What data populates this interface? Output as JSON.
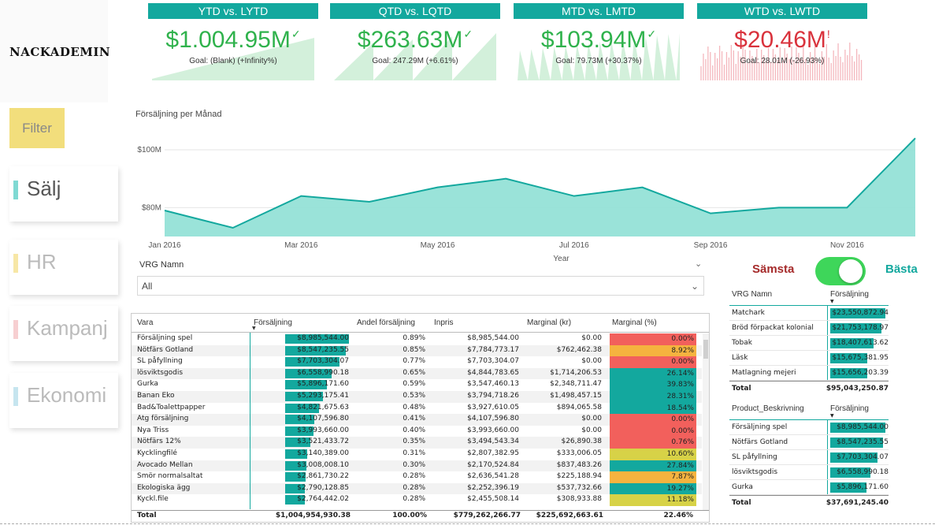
{
  "logo": "NACKADEMIN",
  "kpis": [
    {
      "title": "YTD vs. LYTD",
      "value": "$1.004.95M",
      "mark": "✓",
      "goal": "Goal: (Blank) (+Infinity%)",
      "status": "good"
    },
    {
      "title": "QTD vs. LQTD",
      "value": "$263.63M",
      "mark": "✓",
      "goal": "Goal: 247.29M (+6.61%)",
      "status": "good"
    },
    {
      "title": "MTD vs. LMTD",
      "value": "$103.94M",
      "mark": "✓",
      "goal": "Goal: 79.73M (+30.37%)",
      "status": "good"
    },
    {
      "title": "WTD vs. LWTD",
      "value": "$20.46M",
      "mark": "!",
      "goal": "Goal: 28.01M (-26.93%)",
      "status": "bad"
    }
  ],
  "colors": {
    "accent": "#13a89e",
    "good": "#2fb24c",
    "bad": "#d9323c",
    "area": "#8fe0d5",
    "toggle": "#3ed65a",
    "filter": "#f2de7c"
  },
  "nav": {
    "filter": "Filter",
    "items": [
      {
        "label": "Sälj",
        "bar_color": "#7fd9d3",
        "text_color": "#555555"
      },
      {
        "label": "HR",
        "bar_color": "#f7e7a6",
        "text_color": "#bbbbbb"
      },
      {
        "label": "Kampanj",
        "bar_color": "#f7cfd1",
        "text_color": "#bbbbbb"
      },
      {
        "label": "Ekonomi",
        "bar_color": "#c6e5ef",
        "text_color": "#bbbbbb"
      }
    ]
  },
  "chart_data": {
    "type": "area",
    "title": "Försäljning per Månad",
    "xlabel": "Year",
    "ylabel": "",
    "x": [
      "Jan 2016",
      "Feb 2016",
      "Mar 2016",
      "Apr 2016",
      "May 2016",
      "Jun 2016",
      "Jul 2016",
      "Aug 2016",
      "Sep 2016",
      "Oct 2016",
      "Nov 2016",
      "Dec 2016"
    ],
    "x_tick_labels": [
      "Jan 2016",
      "Mar 2016",
      "May 2016",
      "Jul 2016",
      "Sep 2016",
      "Nov 2016"
    ],
    "y_tick_labels": [
      "$80M",
      "$100M"
    ],
    "y_ticks": [
      80,
      100
    ],
    "values": [
      79,
      73,
      84,
      82,
      87,
      90,
      84,
      87,
      78,
      80,
      80,
      104
    ],
    "ylim": [
      70,
      106
    ],
    "grid": true
  },
  "slicer": {
    "label": "VRG Namn",
    "value": "All"
  },
  "main_table": {
    "headers": [
      "Vara",
      "Försäljning",
      "Andel försäljning",
      "Inpris",
      "Marginal (kr)",
      "Marginal (%)"
    ],
    "rows": [
      {
        "vara": "Försäljning spel",
        "forsaljning": "$8,985,544.00",
        "sales": 8985544,
        "andel": "0.89%",
        "inpris": "$8,985,544.00",
        "marginal_kr": "$0.00",
        "marginal_pct": "0.00%",
        "pct": 0.0
      },
      {
        "vara": "Nötfärs Gotland",
        "forsaljning": "$8,547,235.55",
        "sales": 8547235.55,
        "andel": "0.85%",
        "inpris": "$7,784,773.17",
        "marginal_kr": "$762,462.38",
        "marginal_pct": "8.92%",
        "pct": 8.92
      },
      {
        "vara": "SL påfyllning",
        "forsaljning": "$7,703,304.07",
        "sales": 7703304.07,
        "andel": "0.77%",
        "inpris": "$7,703,304.07",
        "marginal_kr": "$0.00",
        "marginal_pct": "0.00%",
        "pct": 0.0
      },
      {
        "vara": "lösviktsgodis",
        "forsaljning": "$6,558,990.18",
        "sales": 6558990.18,
        "andel": "0.65%",
        "inpris": "$4,844,783.65",
        "marginal_kr": "$1,714,206.53",
        "marginal_pct": "26.14%",
        "pct": 26.14
      },
      {
        "vara": "Gurka",
        "forsaljning": "$5,896,171.60",
        "sales": 5896171.6,
        "andel": "0.59%",
        "inpris": "$3,547,460.13",
        "marginal_kr": "$2,348,711.47",
        "marginal_pct": "39.83%",
        "pct": 39.83
      },
      {
        "vara": "Banan Eko",
        "forsaljning": "$5,293,175.41",
        "sales": 5293175.41,
        "andel": "0.53%",
        "inpris": "$3,794,718.26",
        "marginal_kr": "$1,498,457.15",
        "marginal_pct": "28.31%",
        "pct": 28.31
      },
      {
        "vara": "Bad&Toalettpapper",
        "forsaljning": "$4,821,675.63",
        "sales": 4821675.63,
        "andel": "0.48%",
        "inpris": "$3,927,610.05",
        "marginal_kr": "$894,065.58",
        "marginal_pct": "18.54%",
        "pct": 18.54
      },
      {
        "vara": "Atg försäljning",
        "forsaljning": "$4,107,596.80",
        "sales": 4107596.8,
        "andel": "0.41%",
        "inpris": "$4,107,596.80",
        "marginal_kr": "$0.00",
        "marginal_pct": "0.00%",
        "pct": 0.0
      },
      {
        "vara": "Nya Triss",
        "forsaljning": "$3,993,660.00",
        "sales": 3993660,
        "andel": "0.40%",
        "inpris": "$3,993,660.00",
        "marginal_kr": "$0.00",
        "marginal_pct": "0.00%",
        "pct": 0.0
      },
      {
        "vara": "Nötfärs 12%",
        "forsaljning": "$3,521,433.72",
        "sales": 3521433.72,
        "andel": "0.35%",
        "inpris": "$3,494,543.34",
        "marginal_kr": "$26,890.38",
        "marginal_pct": "0.76%",
        "pct": 0.76
      },
      {
        "vara": "Kycklingfilé",
        "forsaljning": "$3,140,389.00",
        "sales": 3140389,
        "andel": "0.31%",
        "inpris": "$2,807,382.95",
        "marginal_kr": "$333,006.05",
        "marginal_pct": "10.60%",
        "pct": 10.6
      },
      {
        "vara": "Avocado Mellan",
        "forsaljning": "$3,008,008.10",
        "sales": 3008008.1,
        "andel": "0.30%",
        "inpris": "$2,170,524.84",
        "marginal_kr": "$837,483.26",
        "marginal_pct": "27.84%",
        "pct": 27.84
      },
      {
        "vara": "Smör normalsaltat",
        "forsaljning": "$2,861,730.22",
        "sales": 2861730.22,
        "andel": "0.28%",
        "inpris": "$2,636,541.28",
        "marginal_kr": "$225,188.94",
        "marginal_pct": "7.87%",
        "pct": 7.87
      },
      {
        "vara": "Ekologiska ägg",
        "forsaljning": "$2,790,128.85",
        "sales": 2790128.85,
        "andel": "0.28%",
        "inpris": "$2,252,396.19",
        "marginal_kr": "$537,732.66",
        "marginal_pct": "19.27%",
        "pct": 19.27
      },
      {
        "vara": "Kyckl.file",
        "forsaljning": "$2,764,442.02",
        "sales": 2764442.02,
        "andel": "0.28%",
        "inpris": "$2,455,508.14",
        "marginal_kr": "$308,933.88",
        "marginal_pct": "11.18%",
        "pct": 11.18
      }
    ],
    "total": {
      "label": "Total",
      "forsaljning": "$1,004,954,930.38",
      "andel": "100.00%",
      "inpris": "$779,262,266.77",
      "marginal_kr": "$225,692,663.61",
      "marginal_pct": "22.46%"
    }
  },
  "toggle": {
    "worst": "Sämsta",
    "best": "Bästa",
    "state": "on"
  },
  "vrg_table": {
    "headers": [
      "VRG Namn",
      "Försäljning"
    ],
    "rows": [
      {
        "name": "Matchark",
        "value": "$23,550,872.94",
        "sales": 23550872.94
      },
      {
        "name": "Bröd förpackat kolonial",
        "value": "$21,753,178.97",
        "sales": 21753178.97
      },
      {
        "name": "Tobak",
        "value": "$18,407,613.62",
        "sales": 18407613.62
      },
      {
        "name": "Läsk",
        "value": "$15,675,381.95",
        "sales": 15675381.95
      },
      {
        "name": "Matlagning mejeri",
        "value": "$15,656,203.39",
        "sales": 15656203.39
      }
    ],
    "total": {
      "label": "Total",
      "value": "$95,043,250.87"
    }
  },
  "product_table": {
    "headers": [
      "Product_Beskrivning",
      "Försäljning"
    ],
    "rows": [
      {
        "name": "Försäljning spel",
        "value": "$8,985,544.00",
        "sales": 8985544
      },
      {
        "name": "Nötfärs Gotland",
        "value": "$8,547,235.55",
        "sales": 8547235.55
      },
      {
        "name": "SL påfyllning",
        "value": "$7,703,304.07",
        "sales": 7703304.07
      },
      {
        "name": "lösviktsgodis",
        "value": "$6,558,990.18",
        "sales": 6558990.18
      },
      {
        "name": "Gurka",
        "value": "$5,896,171.60",
        "sales": 5896171.6
      }
    ],
    "total": {
      "label": "Total",
      "value": "$37,691,245.40"
    }
  }
}
